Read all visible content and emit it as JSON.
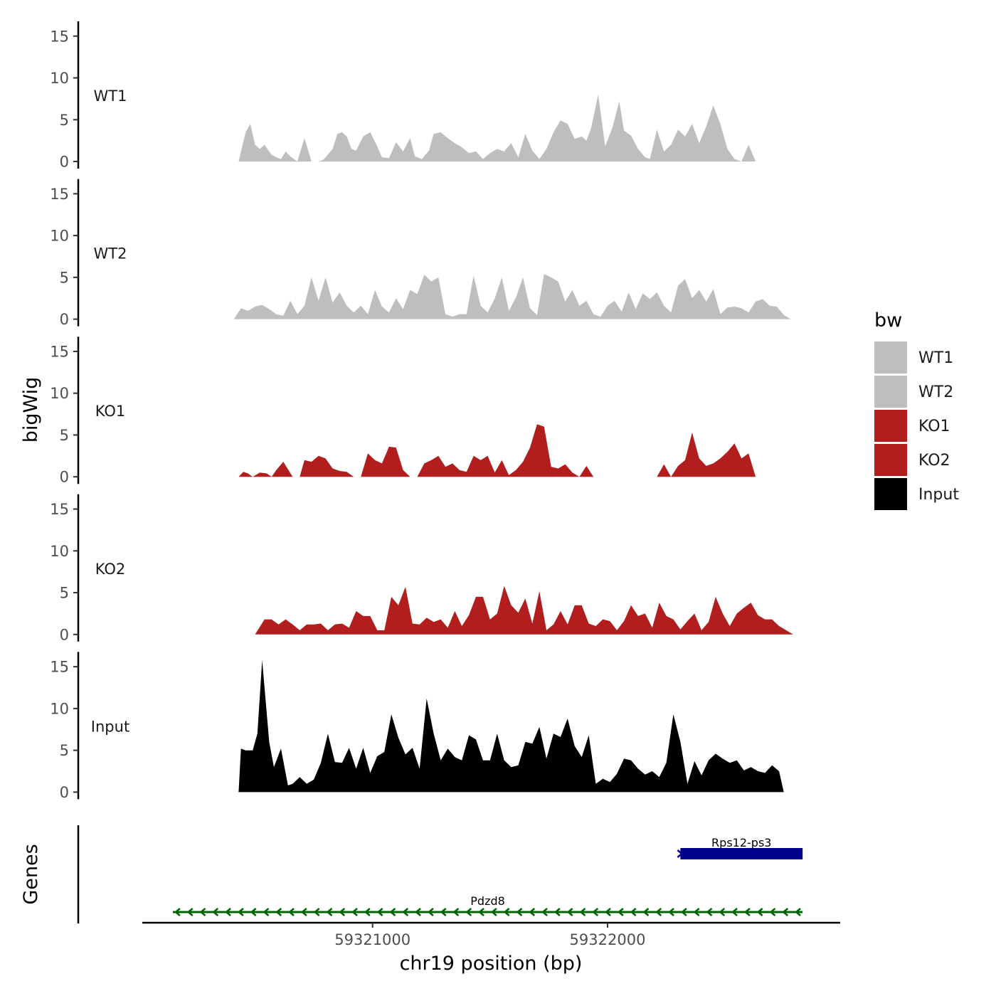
{
  "chart_data": {
    "type": "area",
    "title": "",
    "ylabel": "bigWig",
    "genes_label": "Genes",
    "xlabel": "chr19 position (bp)",
    "xlim": [
      59320020,
      59322990
    ],
    "xticks": [
      59321000,
      59322000
    ],
    "xtick_labels": [
      "59321000",
      "59322000"
    ],
    "ylim": [
      0,
      16
    ],
    "yticks": [
      0,
      5,
      10,
      15
    ],
    "ytick_labels": [
      "0",
      "5",
      "10",
      "15"
    ],
    "legend": {
      "title": "bw",
      "placement": "right",
      "entries": [
        {
          "label": "WT1",
          "color": "#bebebe"
        },
        {
          "label": "WT2",
          "color": "#bebebe"
        },
        {
          "label": "KO1",
          "color": "#b21e1e"
        },
        {
          "label": "KO2",
          "color": "#b21e1e"
        },
        {
          "label": "Input",
          "color": "#000000"
        }
      ]
    },
    "tracks": [
      {
        "name": "WT1",
        "color": "#bebebe",
        "x": [
          59320430,
          59320460,
          59320480,
          59320500,
          59320520,
          59320540,
          59320570,
          59320590,
          59320610,
          59320630,
          59320650,
          59320680,
          59320710,
          59320740,
          59320770,
          59320790,
          59320800,
          59320830,
          59320850,
          59320870,
          59320890,
          59320910,
          59320930,
          59320960,
          59320990,
          59321020,
          59321040,
          59321070,
          59321100,
          59321130,
          59321160,
          59321180,
          59321210,
          59321240,
          59321260,
          59321290,
          59321320,
          59321350,
          59321380,
          59321410,
          59321440,
          59321470,
          59321500,
          59321530,
          59321560,
          59321590,
          59321620,
          59321650,
          59321680,
          59321710,
          59321740,
          59321770,
          59321800,
          59321830,
          59321860,
          59321890,
          59321910,
          59321930,
          59321960,
          59321990,
          59322020,
          59322050,
          59322070,
          59322100,
          59322130,
          59322160,
          59322180,
          59322210,
          59322240,
          59322270,
          59322300,
          59322330,
          59322360,
          59322390,
          59322420,
          59322450,
          59322480,
          59322510,
          59322540,
          59322570,
          59322600,
          59322630,
          59322660,
          59322690,
          59322720,
          59322750
        ],
        "y": [
          0,
          3.5,
          4.5,
          2,
          1.5,
          2,
          0.8,
          0.5,
          0.3,
          1.2,
          0.6,
          0,
          2.8,
          0,
          0,
          0.2,
          0.5,
          1.5,
          3.3,
          3.5,
          3,
          1.5,
          1.3,
          3,
          3.5,
          1.8,
          0.5,
          0.4,
          2.3,
          1.2,
          2.8,
          0.6,
          0.3,
          1.3,
          3.3,
          3.5,
          2.8,
          2.2,
          1.7,
          1,
          1.2,
          0.3,
          1,
          1.5,
          1.2,
          2.2,
          0.5,
          3.3,
          1.3,
          0.3,
          1.5,
          3.5,
          4.9,
          4.5,
          2.7,
          3,
          2.5,
          4,
          8,
          1.8,
          4,
          7.2,
          3.7,
          3.1,
          1.5,
          0.5,
          0.3,
          3.8,
          1.2,
          2,
          3.8,
          3,
          4.5,
          2.2,
          4.2,
          6.7,
          4.5,
          1.5,
          0.3,
          0,
          2,
          0,
          0,
          0,
          0,
          0
        ]
      },
      {
        "name": "WT2",
        "color": "#bebebe",
        "x": [
          59320410,
          59320440,
          59320470,
          59320500,
          59320530,
          59320560,
          59320590,
          59320620,
          59320650,
          59320680,
          59320710,
          59320740,
          59320770,
          59320800,
          59320830,
          59320860,
          59320890,
          59320920,
          59320950,
          59320980,
          59321010,
          59321040,
          59321070,
          59321100,
          59321130,
          59321160,
          59321190,
          59321220,
          59321250,
          59321280,
          59321310,
          59321340,
          59321370,
          59321400,
          59321430,
          59321460,
          59321490,
          59321520,
          59321550,
          59321580,
          59321610,
          59321640,
          59321670,
          59321700,
          59321730,
          59321760,
          59321790,
          59321820,
          59321850,
          59321880,
          59321910,
          59321940,
          59321970,
          59322000,
          59322030,
          59322060,
          59322090,
          59322120,
          59322150,
          59322180,
          59322210,
          59322240,
          59322270,
          59322300,
          59322330,
          59322360,
          59322390,
          59322420,
          59322450,
          59322480,
          59322510,
          59322540,
          59322570,
          59322600,
          59322630,
          59322660,
          59322690,
          59322720,
          59322750,
          59322780
        ],
        "y": [
          0,
          1.3,
          1,
          1.5,
          1.7,
          1.2,
          0.6,
          0.4,
          2.2,
          0.6,
          1.6,
          5,
          2.2,
          5,
          2,
          3.2,
          1.6,
          0.8,
          1.6,
          0.6,
          3.5,
          1.5,
          0.8,
          2.5,
          1.2,
          3.5,
          3,
          5.3,
          4.5,
          5,
          0.6,
          0.3,
          0.6,
          0.6,
          5.2,
          1.6,
          0.8,
          2.5,
          5,
          1,
          2.6,
          5,
          1.3,
          0.5,
          5.4,
          5,
          4.5,
          2.1,
          3.5,
          1.6,
          2.2,
          0.6,
          0.3,
          1.6,
          2.2,
          0.9,
          3.2,
          1.2,
          3.1,
          2.4,
          3.2,
          1.6,
          0.8,
          4,
          4.8,
          2.5,
          3.5,
          2.1,
          3.6,
          0.6,
          1.4,
          1.5,
          1.3,
          0.8,
          2.1,
          2.4,
          1.6,
          1.5,
          0.5,
          0
        ]
      },
      {
        "name": "KO1",
        "color": "#b21e1e",
        "x": [
          59320430,
          59320450,
          59320470,
          59320490,
          59320520,
          59320550,
          59320570,
          59320590,
          59320620,
          59320660,
          59320690,
          59320710,
          59320740,
          59320770,
          59320800,
          59320830,
          59320860,
          59320890,
          59320920,
          59320950,
          59320980,
          59321010,
          59321040,
          59321070,
          59321100,
          59321130,
          59321160,
          59321190,
          59321220,
          59321250,
          59321280,
          59321310,
          59321340,
          59321370,
          59321400,
          59321430,
          59321460,
          59321490,
          59321520,
          59321550,
          59321580,
          59321610,
          59321640,
          59321670,
          59321700,
          59321730,
          59321760,
          59321790,
          59321820,
          59321850,
          59321880,
          59321910,
          59321940,
          59321970,
          59322000,
          59322030,
          59322060,
          59322090,
          59322120,
          59322150,
          59322180,
          59322210,
          59322240,
          59322270,
          59322300,
          59322330,
          59322360,
          59322390,
          59322420,
          59322450,
          59322480,
          59322510,
          59322540,
          59322570,
          59322600,
          59322630,
          59322660,
          59322690,
          59322720,
          59322750
        ],
        "y": [
          0,
          0.6,
          0.4,
          0,
          0.5,
          0.4,
          0,
          0.8,
          1.8,
          0,
          0,
          2,
          1.8,
          2.5,
          2.2,
          1,
          0.7,
          0.6,
          0,
          0,
          2.8,
          2,
          1.6,
          3.6,
          3.5,
          0.8,
          0,
          0,
          1.6,
          2,
          2.5,
          1.2,
          1.6,
          0.8,
          0.6,
          2.5,
          2,
          2.5,
          0.5,
          2,
          0.2,
          0.8,
          1.8,
          3.5,
          6.3,
          6,
          1.2,
          1,
          1.5,
          0.5,
          0,
          1.3,
          0,
          0,
          0,
          0,
          0,
          0,
          0,
          0,
          0,
          0,
          1.5,
          0,
          1.3,
          2,
          5.3,
          2.2,
          1.3,
          1.6,
          2.2,
          3,
          4,
          2.2,
          2.8,
          0,
          0,
          0,
          0,
          0
        ]
      },
      {
        "name": "KO2",
        "color": "#b21e1e",
        "x": [
          59320500,
          59320540,
          59320570,
          59320600,
          59320630,
          59320660,
          59320690,
          59320720,
          59320750,
          59320780,
          59320810,
          59320840,
          59320870,
          59320900,
          59320930,
          59320960,
          59320990,
          59321020,
          59321050,
          59321080,
          59321110,
          59321140,
          59321170,
          59321200,
          59321230,
          59321260,
          59321290,
          59321320,
          59321350,
          59321380,
          59321410,
          59321440,
          59321470,
          59321500,
          59321530,
          59321560,
          59321590,
          59321620,
          59321650,
          59321680,
          59321710,
          59321740,
          59321770,
          59321800,
          59321830,
          59321860,
          59321890,
          59321920,
          59321950,
          59321980,
          59322010,
          59322040,
          59322070,
          59322100,
          59322130,
          59322160,
          59322190,
          59322220,
          59322250,
          59322280,
          59322310,
          59322340,
          59322370,
          59322400,
          59322430,
          59322460,
          59322490,
          59322520,
          59322550,
          59322580,
          59322610,
          59322640,
          59322670,
          59322700,
          59322730,
          59322760,
          59322790
        ],
        "y": [
          0,
          1.8,
          1.8,
          1.2,
          1.8,
          1.2,
          0.5,
          1.2,
          1.2,
          1.3,
          0.5,
          1.2,
          1.3,
          0.8,
          2.8,
          2.2,
          2.2,
          0.5,
          0.5,
          4.5,
          3.5,
          5.7,
          1.3,
          1.2,
          2,
          1.5,
          1.8,
          0.8,
          2.8,
          1,
          2.3,
          4.5,
          4.5,
          1.8,
          2.5,
          5.8,
          3.5,
          2.6,
          4.3,
          1.3,
          5.2,
          0.5,
          1.2,
          2.8,
          1.2,
          3.5,
          3.5,
          1.3,
          1,
          1.8,
          1.6,
          0.5,
          1.6,
          3.5,
          2.2,
          2.5,
          0.8,
          3.8,
          2.2,
          1.8,
          0.6,
          1.6,
          2.5,
          0.5,
          1.5,
          4.5,
          2.5,
          1,
          2.5,
          3.2,
          3.8,
          2.3,
          1.8,
          1.8,
          1,
          0.5,
          0
        ]
      },
      {
        "name": "Input",
        "color": "#000000",
        "x": [
          59320430,
          59320440,
          59320460,
          59320490,
          59320510,
          59320530,
          59320560,
          59320580,
          59320610,
          59320640,
          59320660,
          59320690,
          59320720,
          59320750,
          59320780,
          59320810,
          59320840,
          59320870,
          59320900,
          59320930,
          59320960,
          59320990,
          59321020,
          59321050,
          59321080,
          59321110,
          59321140,
          59321170,
          59321200,
          59321230,
          59321260,
          59321290,
          59321320,
          59321350,
          59321380,
          59321410,
          59321440,
          59321470,
          59321500,
          59321530,
          59321560,
          59321590,
          59321620,
          59321650,
          59321680,
          59321710,
          59321740,
          59321770,
          59321800,
          59321830,
          59321860,
          59321890,
          59321920,
          59321950,
          59321980,
          59322010,
          59322040,
          59322070,
          59322100,
          59322130,
          59322160,
          59322190,
          59322220,
          59322250,
          59322280,
          59322310,
          59322340,
          59322370,
          59322400,
          59322430,
          59322460,
          59322490,
          59322520,
          59322550,
          59322580,
          59322610,
          59322640,
          59322670,
          59322700,
          59322730,
          59322750
        ],
        "y": [
          0,
          5.2,
          5,
          5,
          7,
          15.8,
          6,
          3,
          5.2,
          0.8,
          1,
          1.8,
          1,
          1.5,
          3.5,
          7,
          3.6,
          3.5,
          5.3,
          2.8,
          5.3,
          2.3,
          4.3,
          4.8,
          9.3,
          6.5,
          4.5,
          5.3,
          2.8,
          11.2,
          7,
          3.8,
          5.2,
          4.2,
          3.8,
          6.8,
          6.3,
          3.8,
          3.8,
          7,
          3.8,
          3,
          3.2,
          6,
          5.8,
          7.8,
          4,
          7,
          6.6,
          8.8,
          5.5,
          4.2,
          6.8,
          1,
          1.6,
          1.2,
          2.2,
          4,
          3.8,
          2.8,
          2.1,
          2.5,
          1.8,
          3.5,
          9.3,
          6,
          1,
          3.7,
          2,
          3.8,
          4.6,
          4,
          3.5,
          3.8,
          2.6,
          3,
          2.5,
          2.3,
          3.2,
          2.5,
          0
        ]
      }
    ],
    "genes": [
      {
        "name": "Pdzd8",
        "start": 59320150,
        "end": 59322830,
        "strand": "-",
        "color": "#006400"
      },
      {
        "name": "Rps12-ps3",
        "start": 59322310,
        "end": 59322830,
        "strand": "+",
        "color": "#00008b"
      }
    ]
  }
}
